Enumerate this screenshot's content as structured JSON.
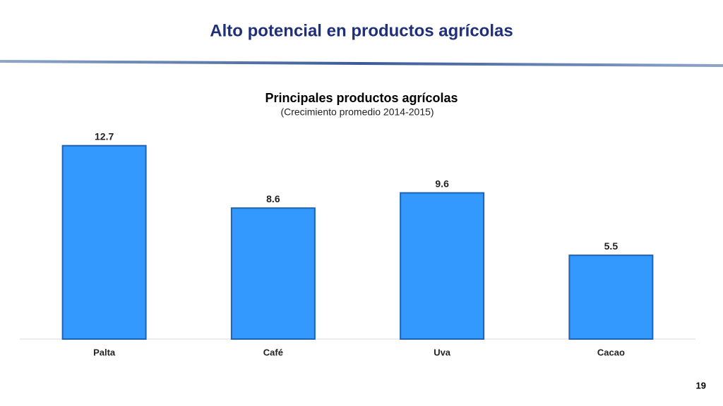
{
  "header": {
    "title": "Alto potencial en productos agrícolas"
  },
  "page_number": "19",
  "chart_data": {
    "type": "bar",
    "title": "Principales productos agrícolas",
    "subtitle": "(Crecimiento promedio 2014-2015)",
    "categories": [
      "Palta",
      "Café",
      "Uva",
      "Cacao"
    ],
    "values": [
      12.7,
      8.6,
      9.6,
      5.5
    ],
    "color": "#3399ff"
  }
}
